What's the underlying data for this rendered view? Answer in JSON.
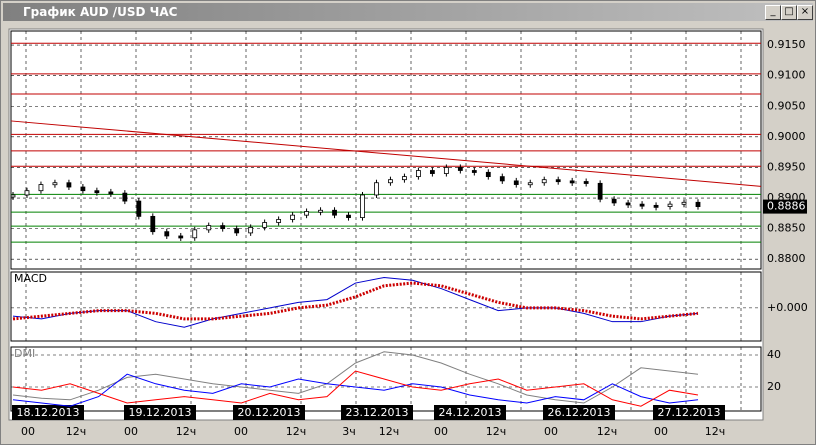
{
  "window": {
    "title": "График AUD /USD ЧАС"
  },
  "chart_data": [
    {
      "type": "candlestick",
      "current_price": {
        "value": 0.8886,
        "label": "0.8886"
      },
      "values": [
        0.8905,
        0.8912,
        0.8922,
        0.8925,
        0.8918,
        0.8912,
        0.891,
        0.8908,
        0.8895,
        0.887,
        0.8845,
        0.8838,
        0.8835,
        0.8848,
        0.8855,
        0.885,
        0.8843,
        0.8852,
        0.886,
        0.8865,
        0.8872,
        0.8878,
        0.888,
        0.8872,
        0.8868,
        0.8905,
        0.8925,
        0.893,
        0.8935,
        0.8945,
        0.894,
        0.895,
        0.8945,
        0.8942,
        0.8935,
        0.8928,
        0.8922,
        0.8925,
        0.893,
        0.8928,
        0.8927,
        0.8924,
        0.8898,
        0.8892,
        0.889,
        0.8888,
        0.8886,
        0.889,
        0.8893,
        0.8886
      ],
      "ylim": [
        0.8784,
        0.9173
      ],
      "yticks": [
        {
          "value": 0.915,
          "label": "0.9150"
        },
        {
          "value": 0.91,
          "label": "0.9100"
        },
        {
          "value": 0.905,
          "label": "0.9050"
        },
        {
          "value": 0.9,
          "label": "0.9000"
        },
        {
          "value": 0.895,
          "label": "0.8950"
        },
        {
          "value": 0.89,
          "label": "0.8900"
        },
        {
          "value": 0.885,
          "label": "0.8850"
        },
        {
          "value": 0.88,
          "label": "0.8800"
        }
      ],
      "resistance_levels": [
        0.9153,
        0.9103,
        0.907,
        0.9004,
        0.8977,
        0.8952
      ],
      "support_levels": [
        0.8906,
        0.8877,
        0.8854,
        0.8828
      ],
      "trendline": [
        0.9026,
        0.8919
      ],
      "date_labels": [
        "18.12.2013",
        "19.12.2013",
        "20.12.2013",
        "23.12.2013",
        "24.12.2013",
        "26.12.2013",
        "27.12.2013"
      ],
      "hour_labels": [
        "00",
        "12ч",
        "00",
        "12ч",
        "00",
        "12ч",
        "3ч",
        "12ч",
        "00",
        "12ч",
        "00",
        "12ч",
        "00",
        "12ч"
      ]
    },
    {
      "type": "line",
      "title": "MACD",
      "ylim": [
        -0.0012,
        0.0013
      ],
      "yticks": [
        {
          "value": 0,
          "label": "+0.000"
        }
      ],
      "series": [
        {
          "color": "#0000cc",
          "values": [
            -0.0003,
            -0.0004,
            -0.0002,
            -0.0001,
            -0.0001,
            -0.0005,
            -0.0007,
            -0.0004,
            -0.0002,
            0,
            0.0002,
            0.0003,
            0.0009,
            0.0011,
            0.001,
            0.0007,
            0.0003,
            -0.0001,
            0,
            0,
            -0.0002,
            -0.0005,
            -0.0005,
            -0.0003,
            -0.0002
          ]
        },
        {
          "color": "#cc0000",
          "values": [
            -0.0004,
            -0.0003,
            -0.0002,
            -0.0001,
            -0.0001,
            -0.0002,
            -0.0004,
            -0.0004,
            -0.0003,
            -0.0002,
            0,
            0.0001,
            0.0004,
            0.0008,
            0.0009,
            0.0008,
            0.0005,
            0.0002,
            0,
            0,
            -0.0001,
            -0.0003,
            -0.0004,
            -0.0003,
            -0.0002
          ]
        }
      ]
    },
    {
      "type": "line",
      "title": "DMI",
      "ylim": [
        5,
        45
      ],
      "yticks": [
        40,
        20
      ],
      "series": [
        {
          "color": "#808080",
          "values": [
            15,
            13,
            12,
            18,
            26,
            28,
            25,
            22,
            20,
            18,
            16,
            22,
            35,
            42,
            40,
            35,
            28,
            22,
            15,
            12,
            10,
            20,
            32,
            30,
            28
          ]
        },
        {
          "color": "#0000ff",
          "values": [
            12,
            10,
            8,
            14,
            28,
            22,
            18,
            16,
            22,
            20,
            25,
            22,
            20,
            18,
            22,
            20,
            15,
            12,
            10,
            14,
            12,
            22,
            14,
            10,
            12
          ]
        },
        {
          "color": "#ff0000",
          "values": [
            20,
            18,
            22,
            16,
            10,
            12,
            14,
            12,
            10,
            16,
            12,
            14,
            30,
            25,
            20,
            18,
            22,
            25,
            18,
            20,
            22,
            12,
            8,
            18,
            15
          ]
        }
      ]
    }
  ]
}
